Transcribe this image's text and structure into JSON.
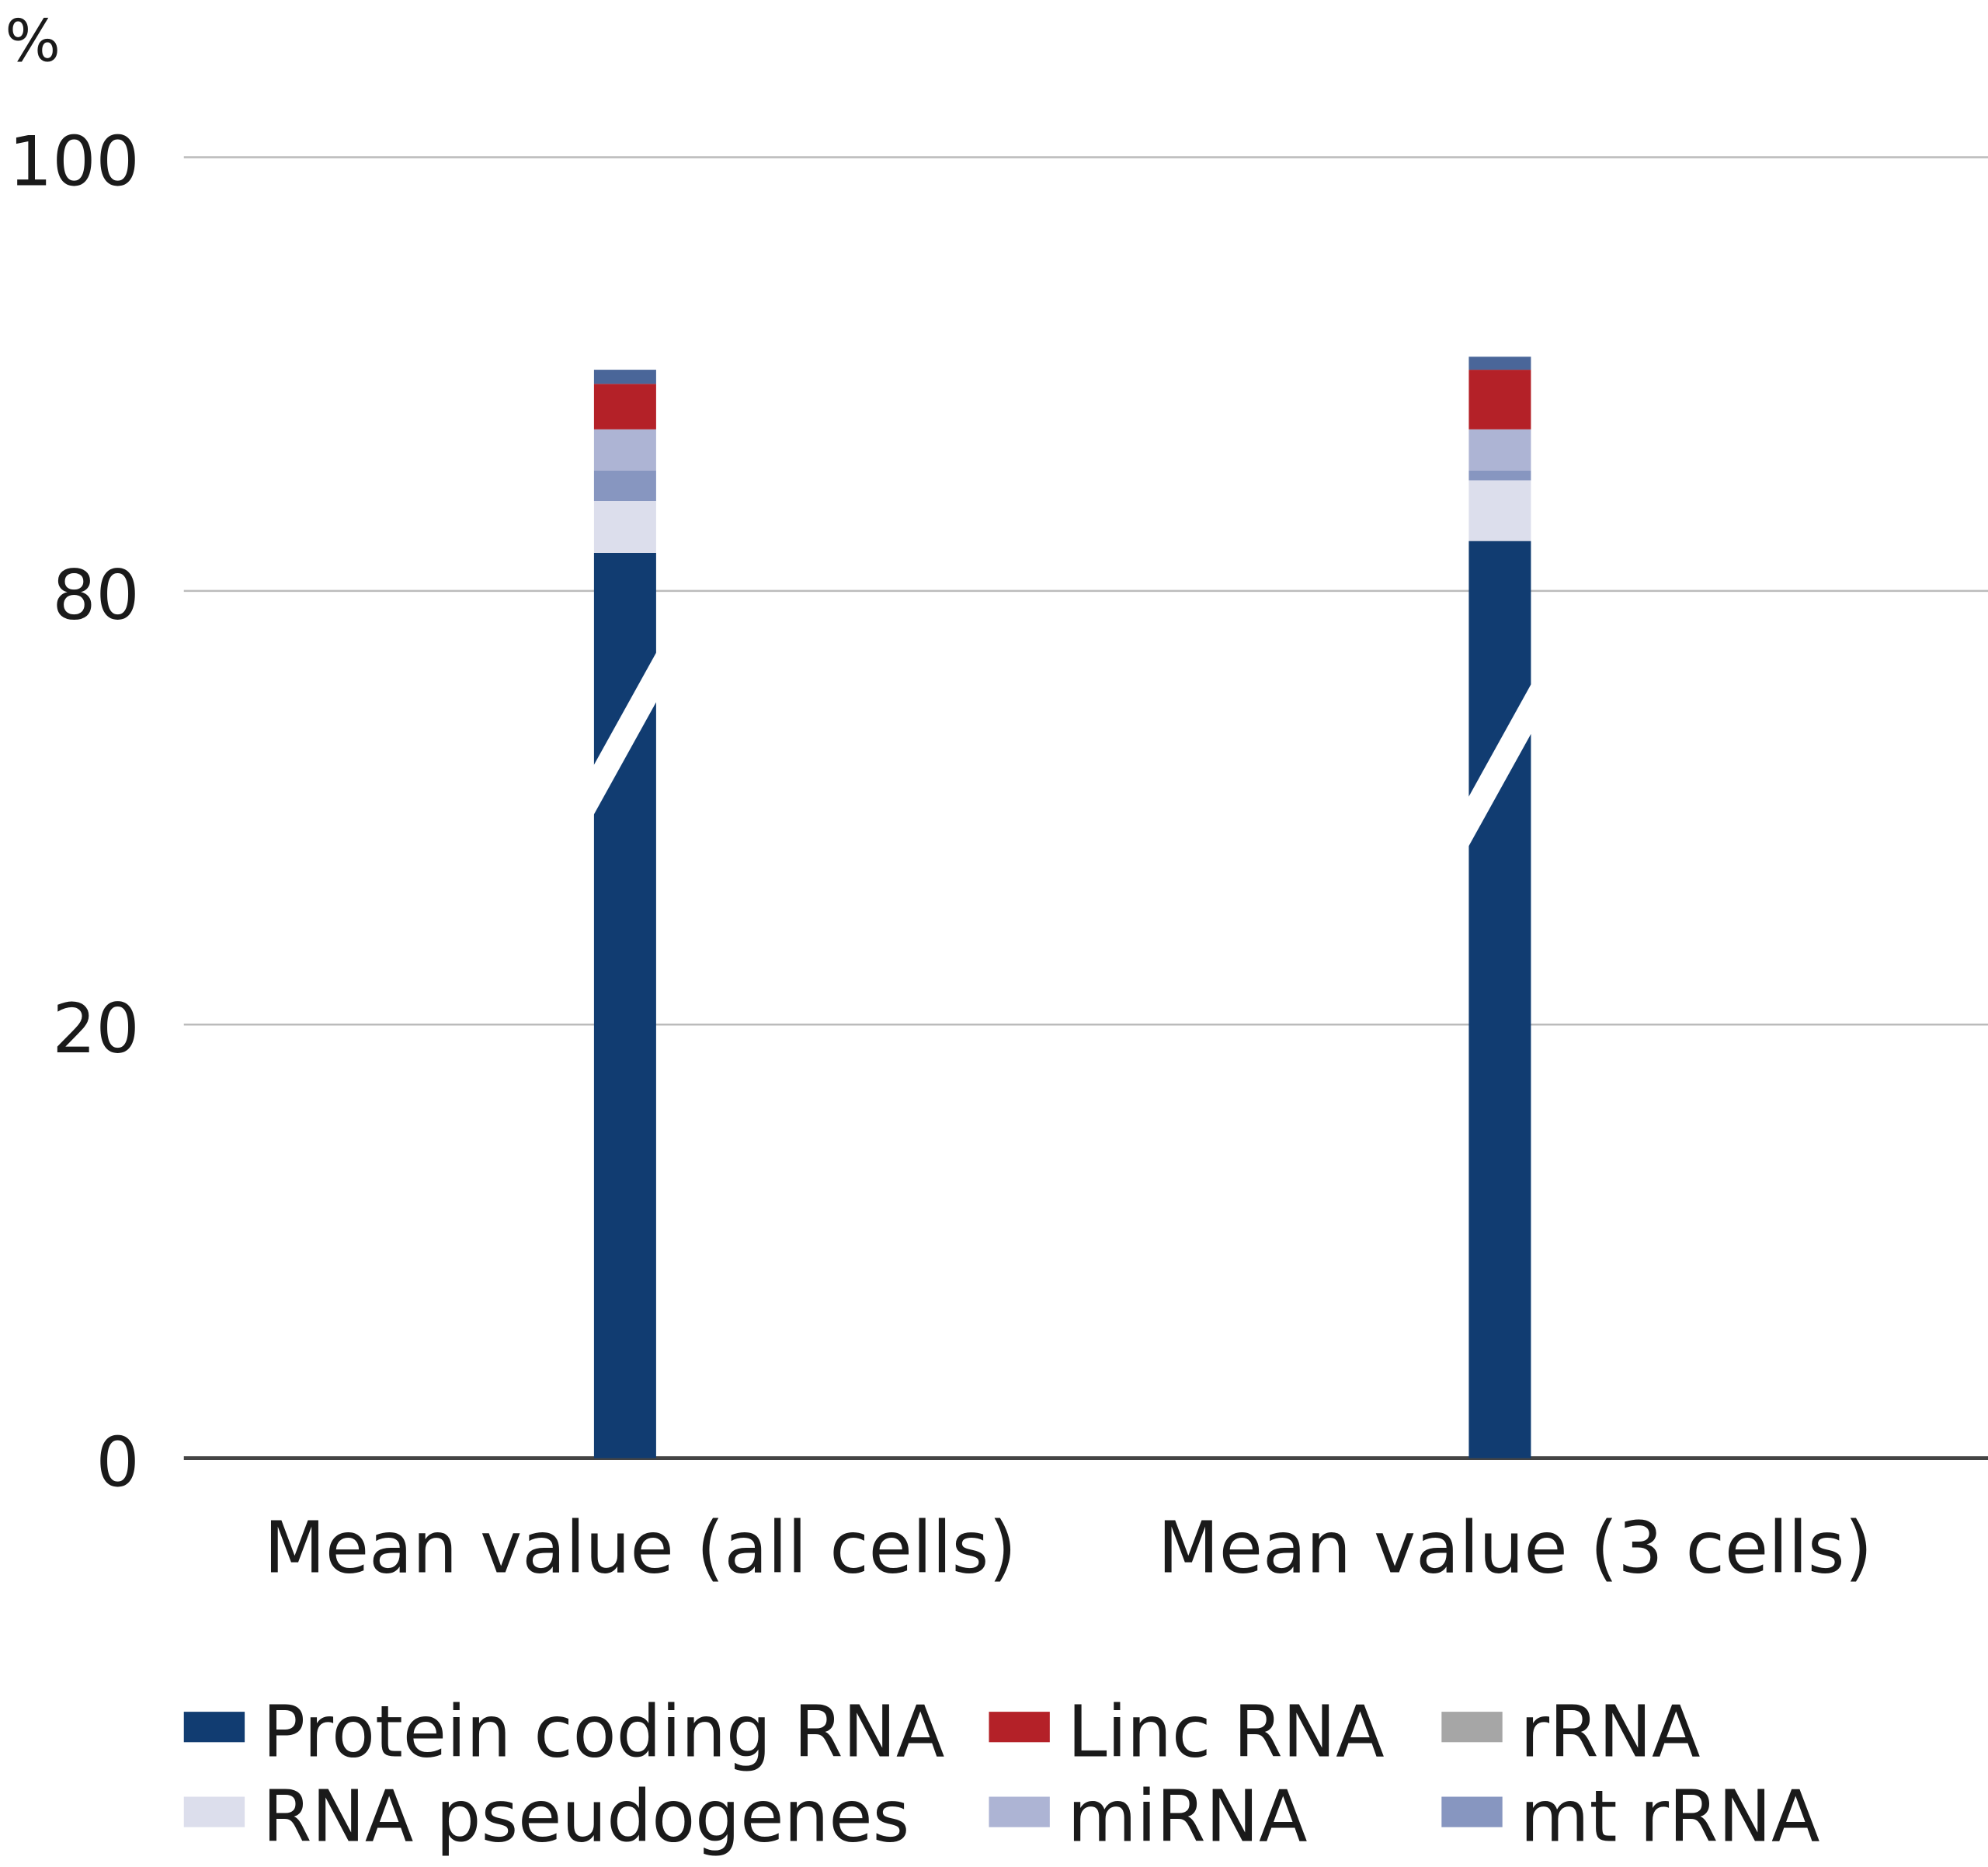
{
  "chart_data": {
    "type": "bar",
    "stacked": true,
    "broken_axis": true,
    "title": "",
    "ylabel": "%",
    "xlabel": "",
    "ylim": [
      0,
      100
    ],
    "yticks": [
      0,
      20,
      80,
      100
    ],
    "grid": true,
    "legend_position": "bottom",
    "categories": [
      "Mean value (all cells)",
      "Mean value (3 cells)"
    ],
    "series": [
      {
        "name": "Protein coding RNA",
        "color": "#113c71",
        "values": [
          81.75,
          82.3
        ]
      },
      {
        "name": "RNA pseudogenes",
        "color": "#dcdeec",
        "values": [
          2.4,
          2.8
        ]
      },
      {
        "name": "mt rRNA",
        "color": "#8796c0",
        "values": [
          1.4,
          0.45
        ]
      },
      {
        "name": "miRNA",
        "color": "#adb4d4",
        "values": [
          1.9,
          1.9
        ]
      },
      {
        "name": "Linc RNA",
        "color": "#b42128",
        "values": [
          2.1,
          2.75
        ]
      },
      {
        "name": "rRNA",
        "color": "#a6a6a6",
        "values": [
          0,
          0
        ]
      },
      {
        "name": "",
        "color": "#4a6699",
        "values": [
          0.65,
          0.6
        ]
      }
    ],
    "legend": [
      {
        "name": "Protein coding RNA",
        "color": "#113c71"
      },
      {
        "name": "Linc RNA",
        "color": "#b42128"
      },
      {
        "name": "rRNA",
        "color": "#a6a6a6"
      },
      {
        "name": "RNA pseudogenes",
        "color": "#dcdeec"
      },
      {
        "name": "miRNA",
        "color": "#adb4d4"
      },
      {
        "name": "mt rRNA",
        "color": "#8796c0"
      }
    ]
  }
}
